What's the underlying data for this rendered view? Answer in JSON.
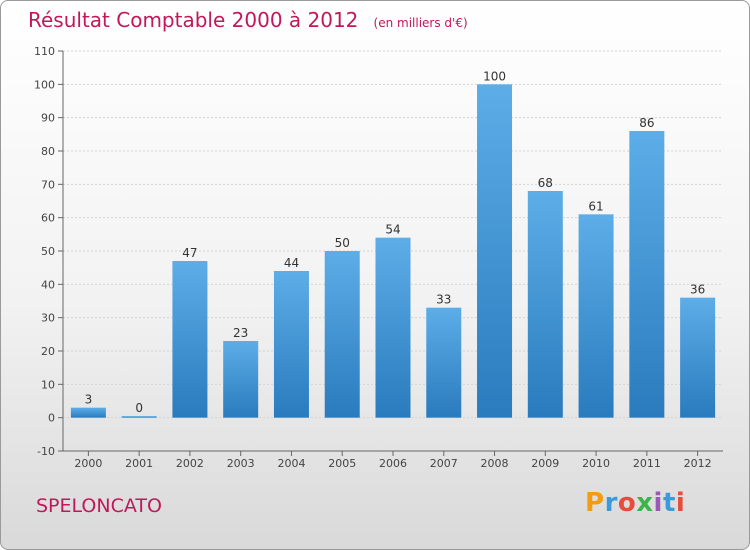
{
  "header": {
    "title": "Résultat Comptable 2000 à 2012",
    "subtitle": "(en milliers d'€)"
  },
  "footer": {
    "commune": "SPELONCATO",
    "logo": "Proxiti"
  },
  "colors": {
    "title": "#c2185b",
    "bar_light": "#5dade8",
    "bar_dark": "#2a7bbd",
    "logo_letters": [
      "#f39c12",
      "#3b9ad9",
      "#e74c3c",
      "#3ab54a",
      "#9b59b6",
      "#3b9ad9",
      "#e74c3c"
    ]
  },
  "chart_data": {
    "type": "bar",
    "title": "Résultat Comptable 2000 à 2012",
    "subtitle": "(en milliers d'€)",
    "categories": [
      "2000",
      "2001",
      "2002",
      "2003",
      "2004",
      "2005",
      "2006",
      "2007",
      "2008",
      "2009",
      "2010",
      "2011",
      "2012"
    ],
    "values": [
      3,
      0,
      47,
      23,
      44,
      50,
      54,
      33,
      100,
      68,
      61,
      86,
      36
    ],
    "data_labels": [
      "3",
      "0",
      "47",
      "23",
      "44",
      "50",
      "54",
      "33",
      "100",
      "68",
      "61",
      "86",
      "36"
    ],
    "yticks": [
      -10,
      0,
      10,
      20,
      30,
      40,
      50,
      60,
      70,
      80,
      90,
      100,
      110
    ],
    "ytick_labels": [
      "-10",
      "0",
      "10",
      "20",
      "30",
      "40",
      "50",
      "60",
      "70",
      "80",
      "90",
      "100",
      "110"
    ],
    "ylim": [
      -10,
      110
    ],
    "grid": true
  }
}
